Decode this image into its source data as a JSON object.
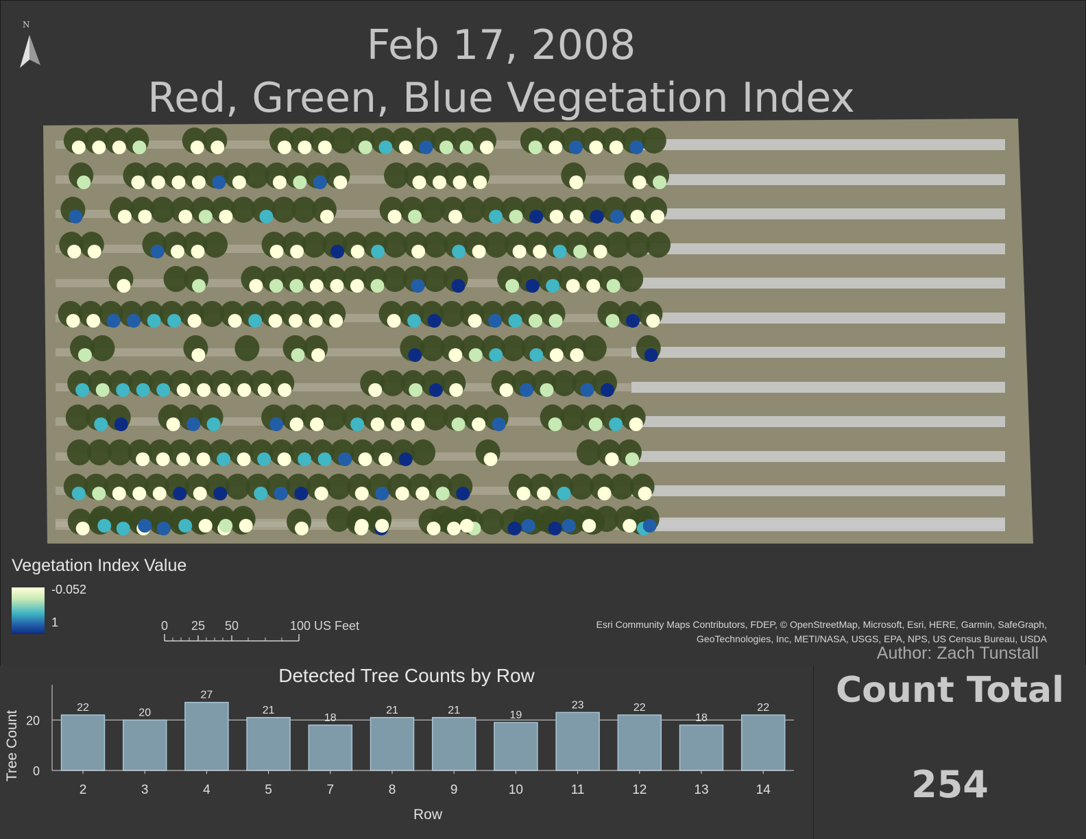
{
  "map": {
    "title_date": "Feb 17, 2008",
    "title_main": "Red, Green, Blue Vegetation Index",
    "north_arrow_label": "N",
    "legend": {
      "title": "Vegetation Index Value",
      "max_label": "-0.052",
      "min_label": "1",
      "ramp_colors": [
        "#ffffd9",
        "#c7e9b4",
        "#41b6c4",
        "#225ea8",
        "#0c2c84"
      ]
    },
    "scale_bar": {
      "labels": [
        "0",
        "25",
        "50",
        "100 US Feet"
      ]
    },
    "credits_line1": "Esri Community Maps Contributors, FDEP, © OpenStreetMap, Microsoft, Esri, HERE, Garmin, SafeGraph,",
    "credits_line2": "GeoTechnologies, Inc, METI/NASA, USGS, EPA, NPS, US Census Bureau, USDA",
    "author": "Author: Zach Tunstall",
    "colors": {
      "background": "#353535",
      "imagery_ground": "#8f8a72",
      "imagery_strip": "#c9c9c9",
      "canopy": "#3a4a22"
    }
  },
  "summary": {
    "label": "Count Total",
    "value": "254"
  },
  "chart_data": {
    "type": "bar",
    "title": "Detected Tree Counts by Row",
    "xlabel": "Row",
    "ylabel": "Tree Count",
    "categories": [
      "2",
      "3",
      "4",
      "5",
      "7",
      "8",
      "9",
      "10",
      "11",
      "12",
      "13",
      "14"
    ],
    "values": [
      22,
      20,
      27,
      21,
      18,
      21,
      21,
      19,
      23,
      22,
      18,
      22
    ],
    "yticks": [
      "0",
      "20"
    ],
    "ylim": [
      0,
      28
    ],
    "grid": true,
    "bar_color": "#7f9aa9"
  }
}
